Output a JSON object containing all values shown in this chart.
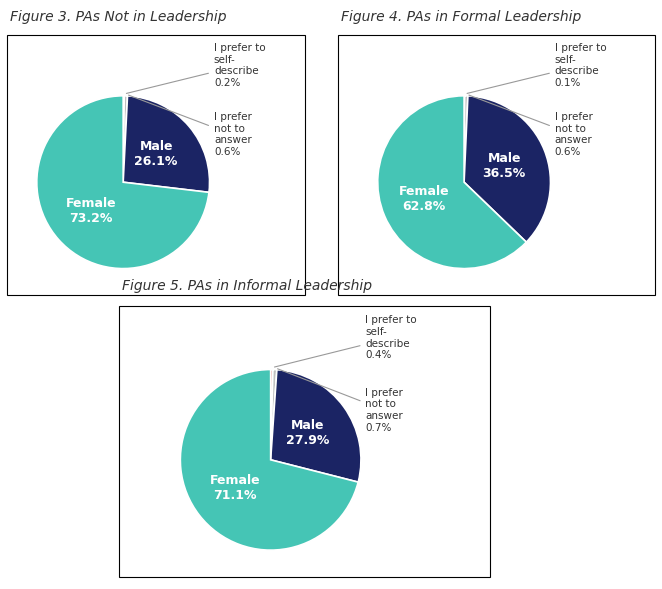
{
  "charts": [
    {
      "title": "Figure 3. PAs Not in Leadership",
      "slices": [
        73.2,
        26.1,
        0.2,
        0.6
      ],
      "colors": [
        "#45C5B5",
        "#1B2464",
        "#E05050",
        "#C0C0C0"
      ],
      "female_pct": "73.2%",
      "male_pct": "26.1%",
      "self_desc_pct": "0.2%",
      "not_answer_pct": "0.6%"
    },
    {
      "title": "Figure 4. PAs in Formal Leadership",
      "slices": [
        62.8,
        36.5,
        0.1,
        0.6
      ],
      "colors": [
        "#45C5B5",
        "#1B2464",
        "#E05050",
        "#C0C0C0"
      ],
      "female_pct": "62.8%",
      "male_pct": "36.5%",
      "self_desc_pct": "0.1%",
      "not_answer_pct": "0.6%"
    },
    {
      "title": "Figure 5. PAs in Informal Leadership",
      "slices": [
        71.1,
        27.9,
        0.4,
        0.7
      ],
      "colors": [
        "#45C5B5",
        "#1B2464",
        "#E05050",
        "#C0C0C0"
      ],
      "female_pct": "71.1%",
      "male_pct": "27.9%",
      "self_desc_pct": "0.4%",
      "not_answer_pct": "0.7%"
    }
  ],
  "bg_color": "#ffffff",
  "title_fontsize": 10,
  "inner_label_fontsize": 9,
  "outer_label_fontsize": 7.5,
  "box_color": "#000000",
  "text_color_dark": "#333333"
}
